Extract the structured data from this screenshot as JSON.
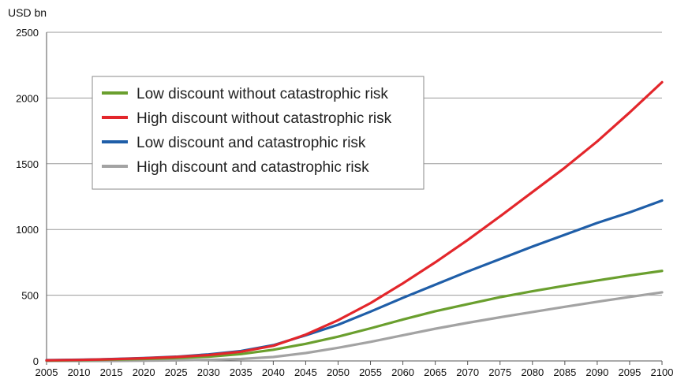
{
  "chart_data": {
    "type": "line",
    "ylabel": "USD bn",
    "xlabel": "",
    "title": "",
    "xlim": [
      2005,
      2100
    ],
    "ylim": [
      0,
      2500
    ],
    "x_ticks": [
      2005,
      2010,
      2015,
      2020,
      2025,
      2030,
      2035,
      2040,
      2045,
      2050,
      2055,
      2060,
      2065,
      2070,
      2075,
      2080,
      2085,
      2090,
      2095,
      2100
    ],
    "y_ticks": [
      0,
      500,
      1000,
      1500,
      2000,
      2500
    ],
    "grid": "horizontal",
    "legend_position": "upper-left",
    "x": [
      2005,
      2010,
      2015,
      2020,
      2025,
      2030,
      2035,
      2040,
      2045,
      2050,
      2055,
      2060,
      2065,
      2070,
      2075,
      2080,
      2085,
      2090,
      2095,
      2100
    ],
    "series": [
      {
        "name": "Low discount without catastrophic risk",
        "color": "#6a9f2e",
        "values": [
          3,
          6,
          10,
          15,
          22,
          32,
          52,
          85,
          130,
          185,
          248,
          315,
          378,
          432,
          485,
          530,
          572,
          612,
          650,
          685
        ]
      },
      {
        "name": "High discount without catastrophic risk",
        "color": "#e3262b",
        "values": [
          5,
          8,
          13,
          20,
          30,
          45,
          70,
          115,
          200,
          310,
          440,
          590,
          750,
          920,
          1100,
          1285,
          1470,
          1670,
          1890,
          2120
        ]
      },
      {
        "name": "Low discount and catastrophic risk",
        "color": "#1f5ea8",
        "values": [
          6,
          9,
          14,
          22,
          32,
          50,
          75,
          120,
          195,
          275,
          375,
          480,
          580,
          680,
          775,
          870,
          960,
          1050,
          1130,
          1220
        ]
      },
      {
        "name": "High discount and catastrophic risk",
        "color": "#a3a3a3",
        "values": [
          0,
          0,
          0,
          2,
          4,
          8,
          15,
          30,
          60,
          100,
          145,
          195,
          245,
          290,
          332,
          372,
          412,
          450,
          487,
          522
        ]
      }
    ]
  }
}
